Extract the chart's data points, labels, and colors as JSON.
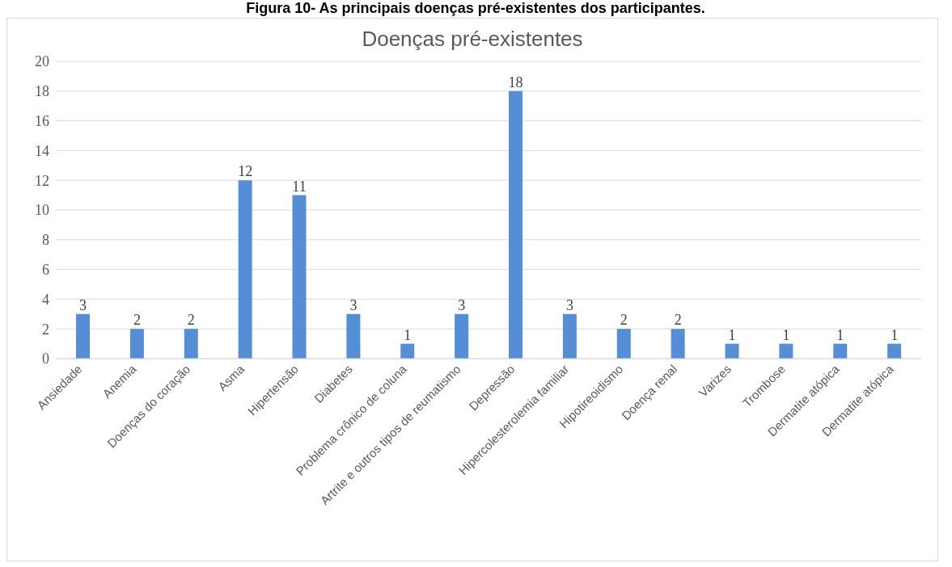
{
  "chart_data": {
    "type": "bar",
    "title": "Doenças pré-existentes",
    "annotations": [
      "Figura 10- As principais doenças pré-existentes dos participantes."
    ],
    "categories": [
      "Ansiedade",
      "Anemia",
      "Doenças do coração",
      "Asma",
      "Hipertensão",
      "Diabetes",
      "Problema crônico de coluna",
      "Artrite e outros tipos de reumatismo",
      "Depressão",
      "Hipercolesterolemia familiar",
      "Hipotireoidismo",
      "Doença renal",
      "Varizes",
      "Trombose",
      "Dermatite atópica",
      "Dermatite atópica"
    ],
    "values": [
      3,
      2,
      2,
      12,
      11,
      3,
      1,
      3,
      18,
      3,
      2,
      2,
      1,
      1,
      1,
      1
    ],
    "color": "#558ed5",
    "ylim": [
      0,
      20
    ],
    "yticks": [
      0,
      2,
      4,
      6,
      8,
      10,
      12,
      14,
      16,
      18,
      20
    ],
    "grid": "y",
    "data_labels": true
  }
}
